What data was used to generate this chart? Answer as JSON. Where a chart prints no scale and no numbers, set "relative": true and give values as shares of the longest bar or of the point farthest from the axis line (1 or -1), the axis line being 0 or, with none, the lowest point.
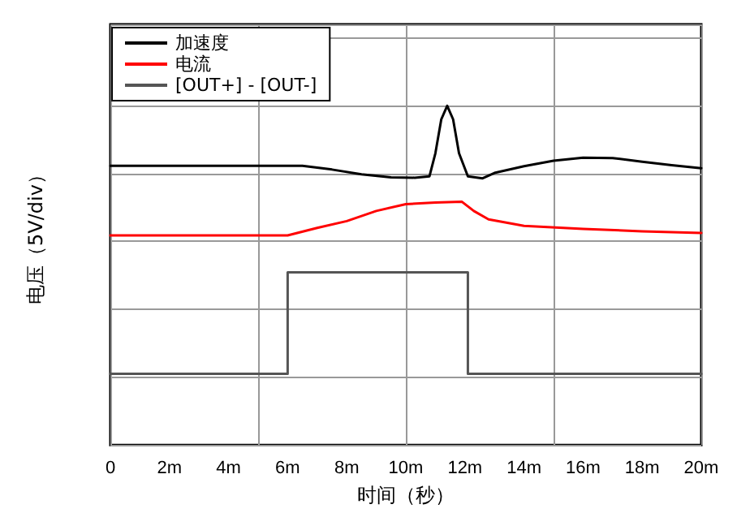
{
  "chart_data": {
    "type": "line",
    "relative": true,
    "xlabel": "时间（秒）",
    "ylabel": "电压（5V/div）",
    "xlim": [
      0,
      20
    ],
    "xticks": [
      {
        "value": 0,
        "label": "0"
      },
      {
        "value": 2,
        "label": "2m"
      },
      {
        "value": 4,
        "label": "4m"
      },
      {
        "value": 6,
        "label": "6m"
      },
      {
        "value": 8,
        "label": "8m"
      },
      {
        "value": 10,
        "label": "10m"
      },
      {
        "value": 12,
        "label": "12m"
      },
      {
        "value": 14,
        "label": "14m"
      },
      {
        "value": 16,
        "label": "16m"
      },
      {
        "value": 18,
        "label": "18m"
      },
      {
        "value": 20,
        "label": "20m"
      }
    ],
    "grid": true,
    "legend": "top left",
    "marker": "none",
    "line_style": "solid",
    "series": [
      {
        "name": "加速度",
        "color": "#000000",
        "x": [
          0,
          6.5,
          7.5,
          8.5,
          9.5,
          10.3,
          10.8,
          11.0,
          11.2,
          11.4,
          11.6,
          11.8,
          12.1,
          12.6,
          13.0,
          14.0,
          15.0,
          16.0,
          17.0,
          18.0,
          19.0,
          20.0
        ],
        "values": [
          0.823,
          0.823,
          0.812,
          0.798,
          0.789,
          0.788,
          0.792,
          0.86,
          0.96,
          1,
          0.96,
          0.86,
          0.792,
          0.786,
          0.802,
          0.822,
          0.838,
          0.847,
          0.846,
          0.835,
          0.825,
          0.816
        ]
      },
      {
        "name": "电流",
        "color": "#ff0000",
        "x": [
          0,
          6.0,
          7.0,
          8.0,
          9.0,
          10.0,
          11.0,
          11.9,
          12.3,
          12.8,
          14.0,
          16.0,
          18.0,
          20.0
        ],
        "values": [
          0.618,
          0.618,
          0.64,
          0.66,
          0.69,
          0.71,
          0.715,
          0.717,
          0.69,
          0.665,
          0.646,
          0.637,
          0.63,
          0.625
        ]
      },
      {
        "name": "[OUT+] - [OUT-]",
        "color": "#555555",
        "x": [
          0,
          6.0,
          6.0,
          12.1,
          12.1,
          20.0
        ],
        "values": [
          0.21,
          0.21,
          0.509,
          0.509,
          0.21,
          0.21
        ]
      }
    ]
  }
}
